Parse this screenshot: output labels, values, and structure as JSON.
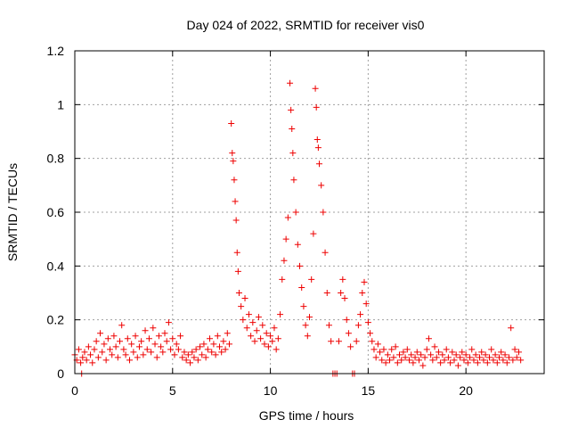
{
  "chart_data": {
    "type": "scatter",
    "title": "Day 024 of 2022, SRMTID for receiver vis0",
    "xlabel": "GPS time / hours",
    "ylabel": "SRMTID / TECUs",
    "xlim": [
      0,
      24
    ],
    "ylim": [
      0,
      1.2
    ],
    "xticks": [
      0,
      5,
      10,
      15,
      20
    ],
    "xtick_labels": [
      "0",
      "5",
      "10",
      "15",
      "20"
    ],
    "yticks": [
      0,
      0.2,
      0.4,
      0.6,
      0.8,
      1,
      1.2
    ],
    "ytick_labels": [
      "0",
      "0.2",
      "0.4",
      "0.6",
      "0.8",
      "1",
      "1.2"
    ],
    "grid": true,
    "marker": "+",
    "colors": {
      "marker": "#ee0000",
      "grid": "#a0a0a0",
      "axis": "#000000"
    },
    "series": [
      {
        "name": "vis0",
        "points": [
          [
            0.0,
            0.07
          ],
          [
            0.1,
            0.05
          ],
          [
            0.2,
            0.09
          ],
          [
            0.3,
            0.04
          ],
          [
            0.35,
            0.0
          ],
          [
            0.4,
            0.06
          ],
          [
            0.5,
            0.08
          ],
          [
            0.6,
            0.05
          ],
          [
            0.7,
            0.1
          ],
          [
            0.8,
            0.07
          ],
          [
            0.9,
            0.04
          ],
          [
            1.0,
            0.09
          ],
          [
            1.1,
            0.12
          ],
          [
            1.2,
            0.06
          ],
          [
            1.3,
            0.15
          ],
          [
            1.4,
            0.08
          ],
          [
            1.5,
            0.11
          ],
          [
            1.6,
            0.05
          ],
          [
            1.7,
            0.13
          ],
          [
            1.8,
            0.09
          ],
          [
            1.9,
            0.07
          ],
          [
            2.0,
            0.14
          ],
          [
            2.1,
            0.1
          ],
          [
            2.2,
            0.06
          ],
          [
            2.3,
            0.12
          ],
          [
            2.4,
            0.18
          ],
          [
            2.5,
            0.09
          ],
          [
            2.6,
            0.07
          ],
          [
            2.7,
            0.13
          ],
          [
            2.8,
            0.05
          ],
          [
            2.9,
            0.11
          ],
          [
            3.0,
            0.08
          ],
          [
            3.1,
            0.14
          ],
          [
            3.2,
            0.06
          ],
          [
            3.3,
            0.1
          ],
          [
            3.4,
            0.12
          ],
          [
            3.5,
            0.07
          ],
          [
            3.6,
            0.16
          ],
          [
            3.7,
            0.09
          ],
          [
            3.8,
            0.13
          ],
          [
            3.9,
            0.08
          ],
          [
            4.0,
            0.17
          ],
          [
            4.1,
            0.11
          ],
          [
            4.2,
            0.06
          ],
          [
            4.3,
            0.14
          ],
          [
            4.4,
            0.1
          ],
          [
            4.5,
            0.08
          ],
          [
            4.6,
            0.15
          ],
          [
            4.7,
            0.12
          ],
          [
            4.8,
            0.19
          ],
          [
            4.9,
            0.09
          ],
          [
            5.0,
            0.13
          ],
          [
            5.1,
            0.07
          ],
          [
            5.2,
            0.11
          ],
          [
            5.3,
            0.09
          ],
          [
            5.4,
            0.14
          ],
          [
            5.5,
            0.06
          ],
          [
            5.6,
            0.08
          ],
          [
            5.7,
            0.05
          ],
          [
            5.8,
            0.07
          ],
          [
            5.9,
            0.04
          ],
          [
            6.0,
            0.08
          ],
          [
            6.1,
            0.06
          ],
          [
            6.2,
            0.09
          ],
          [
            6.3,
            0.05
          ],
          [
            6.4,
            0.1
          ],
          [
            6.5,
            0.07
          ],
          [
            6.6,
            0.11
          ],
          [
            6.7,
            0.06
          ],
          [
            6.8,
            0.09
          ],
          [
            6.9,
            0.13
          ],
          [
            7.0,
            0.08
          ],
          [
            7.1,
            0.11
          ],
          [
            7.2,
            0.07
          ],
          [
            7.3,
            0.14
          ],
          [
            7.4,
            0.1
          ],
          [
            7.5,
            0.08
          ],
          [
            7.6,
            0.12
          ],
          [
            7.7,
            0.09
          ],
          [
            7.8,
            0.15
          ],
          [
            7.9,
            0.11
          ],
          [
            8.0,
            0.93
          ],
          [
            8.05,
            0.82
          ],
          [
            8.1,
            0.79
          ],
          [
            8.15,
            0.72
          ],
          [
            8.2,
            0.64
          ],
          [
            8.25,
            0.57
          ],
          [
            8.3,
            0.45
          ],
          [
            8.35,
            0.38
          ],
          [
            8.4,
            0.3
          ],
          [
            8.5,
            0.25
          ],
          [
            8.6,
            0.2
          ],
          [
            8.7,
            0.28
          ],
          [
            8.8,
            0.17
          ],
          [
            8.9,
            0.22
          ],
          [
            9.0,
            0.14
          ],
          [
            9.1,
            0.19
          ],
          [
            9.2,
            0.12
          ],
          [
            9.3,
            0.16
          ],
          [
            9.4,
            0.21
          ],
          [
            9.5,
            0.13
          ],
          [
            9.6,
            0.18
          ],
          [
            9.7,
            0.11
          ],
          [
            9.8,
            0.15
          ],
          [
            9.9,
            0.1
          ],
          [
            10.0,
            0.14
          ],
          [
            10.1,
            0.12
          ],
          [
            10.2,
            0.17
          ],
          [
            10.3,
            0.09
          ],
          [
            10.4,
            0.13
          ],
          [
            10.5,
            0.22
          ],
          [
            10.6,
            0.35
          ],
          [
            10.7,
            0.42
          ],
          [
            10.8,
            0.5
          ],
          [
            10.9,
            0.58
          ],
          [
            11.0,
            1.08
          ],
          [
            11.05,
            0.98
          ],
          [
            11.1,
            0.91
          ],
          [
            11.15,
            0.82
          ],
          [
            11.2,
            0.72
          ],
          [
            11.3,
            0.6
          ],
          [
            11.4,
            0.48
          ],
          [
            11.5,
            0.4
          ],
          [
            11.6,
            0.32
          ],
          [
            11.7,
            0.25
          ],
          [
            11.8,
            0.18
          ],
          [
            11.9,
            0.14
          ],
          [
            12.0,
            0.21
          ],
          [
            12.1,
            0.35
          ],
          [
            12.2,
            0.52
          ],
          [
            12.3,
            1.06
          ],
          [
            12.35,
            0.99
          ],
          [
            12.4,
            0.87
          ],
          [
            12.45,
            0.84
          ],
          [
            12.5,
            0.78
          ],
          [
            12.6,
            0.7
          ],
          [
            12.7,
            0.6
          ],
          [
            12.8,
            0.45
          ],
          [
            12.9,
            0.3
          ],
          [
            13.0,
            0.18
          ],
          [
            13.1,
            0.12
          ],
          [
            13.2,
            0.0
          ],
          [
            13.3,
            0.0
          ],
          [
            13.4,
            0.0
          ],
          [
            13.5,
            0.12
          ],
          [
            13.6,
            0.3
          ],
          [
            13.7,
            0.35
          ],
          [
            13.8,
            0.28
          ],
          [
            13.9,
            0.2
          ],
          [
            14.0,
            0.15
          ],
          [
            14.1,
            0.1
          ],
          [
            14.2,
            0.0
          ],
          [
            14.3,
            0.0
          ],
          [
            14.4,
            0.12
          ],
          [
            14.5,
            0.18
          ],
          [
            14.6,
            0.22
          ],
          [
            14.7,
            0.3
          ],
          [
            14.8,
            0.34
          ],
          [
            14.9,
            0.26
          ],
          [
            15.0,
            0.19
          ],
          [
            15.1,
            0.15
          ],
          [
            15.2,
            0.12
          ],
          [
            15.3,
            0.09
          ],
          [
            15.4,
            0.06
          ],
          [
            15.5,
            0.11
          ],
          [
            15.6,
            0.08
          ],
          [
            15.7,
            0.05
          ],
          [
            15.8,
            0.09
          ],
          [
            15.9,
            0.04
          ],
          [
            16.0,
            0.07
          ],
          [
            16.1,
            0.05
          ],
          [
            16.2,
            0.09
          ],
          [
            16.3,
            0.06
          ],
          [
            16.4,
            0.1
          ],
          [
            16.5,
            0.04
          ],
          [
            16.6,
            0.07
          ],
          [
            16.7,
            0.05
          ],
          [
            16.8,
            0.08
          ],
          [
            16.9,
            0.06
          ],
          [
            17.0,
            0.09
          ],
          [
            17.1,
            0.05
          ],
          [
            17.2,
            0.07
          ],
          [
            17.3,
            0.04
          ],
          [
            17.4,
            0.06
          ],
          [
            17.5,
            0.08
          ],
          [
            17.6,
            0.05
          ],
          [
            17.7,
            0.07
          ],
          [
            17.8,
            0.03
          ],
          [
            17.9,
            0.06
          ],
          [
            18.0,
            0.09
          ],
          [
            18.1,
            0.13
          ],
          [
            18.2,
            0.07
          ],
          [
            18.3,
            0.05
          ],
          [
            18.4,
            0.1
          ],
          [
            18.5,
            0.06
          ],
          [
            18.6,
            0.08
          ],
          [
            18.7,
            0.04
          ],
          [
            18.8,
            0.07
          ],
          [
            18.9,
            0.05
          ],
          [
            19.0,
            0.09
          ],
          [
            19.1,
            0.06
          ],
          [
            19.2,
            0.04
          ],
          [
            19.3,
            0.08
          ],
          [
            19.4,
            0.05
          ],
          [
            19.5,
            0.07
          ],
          [
            19.6,
            0.03
          ],
          [
            19.7,
            0.06
          ],
          [
            19.8,
            0.08
          ],
          [
            19.9,
            0.05
          ],
          [
            20.0,
            0.07
          ],
          [
            20.1,
            0.04
          ],
          [
            20.2,
            0.06
          ],
          [
            20.3,
            0.09
          ],
          [
            20.4,
            0.05
          ],
          [
            20.5,
            0.07
          ],
          [
            20.6,
            0.04
          ],
          [
            20.7,
            0.06
          ],
          [
            20.8,
            0.08
          ],
          [
            20.9,
            0.05
          ],
          [
            21.0,
            0.07
          ],
          [
            21.1,
            0.04
          ],
          [
            21.2,
            0.06
          ],
          [
            21.3,
            0.09
          ],
          [
            21.4,
            0.05
          ],
          [
            21.5,
            0.07
          ],
          [
            21.6,
            0.04
          ],
          [
            21.7,
            0.06
          ],
          [
            21.8,
            0.08
          ],
          [
            21.9,
            0.05
          ],
          [
            22.0,
            0.07
          ],
          [
            22.1,
            0.04
          ],
          [
            22.2,
            0.06
          ],
          [
            22.3,
            0.17
          ],
          [
            22.4,
            0.05
          ],
          [
            22.5,
            0.09
          ],
          [
            22.6,
            0.06
          ],
          [
            22.7,
            0.08
          ],
          [
            22.8,
            0.05
          ]
        ]
      }
    ]
  }
}
